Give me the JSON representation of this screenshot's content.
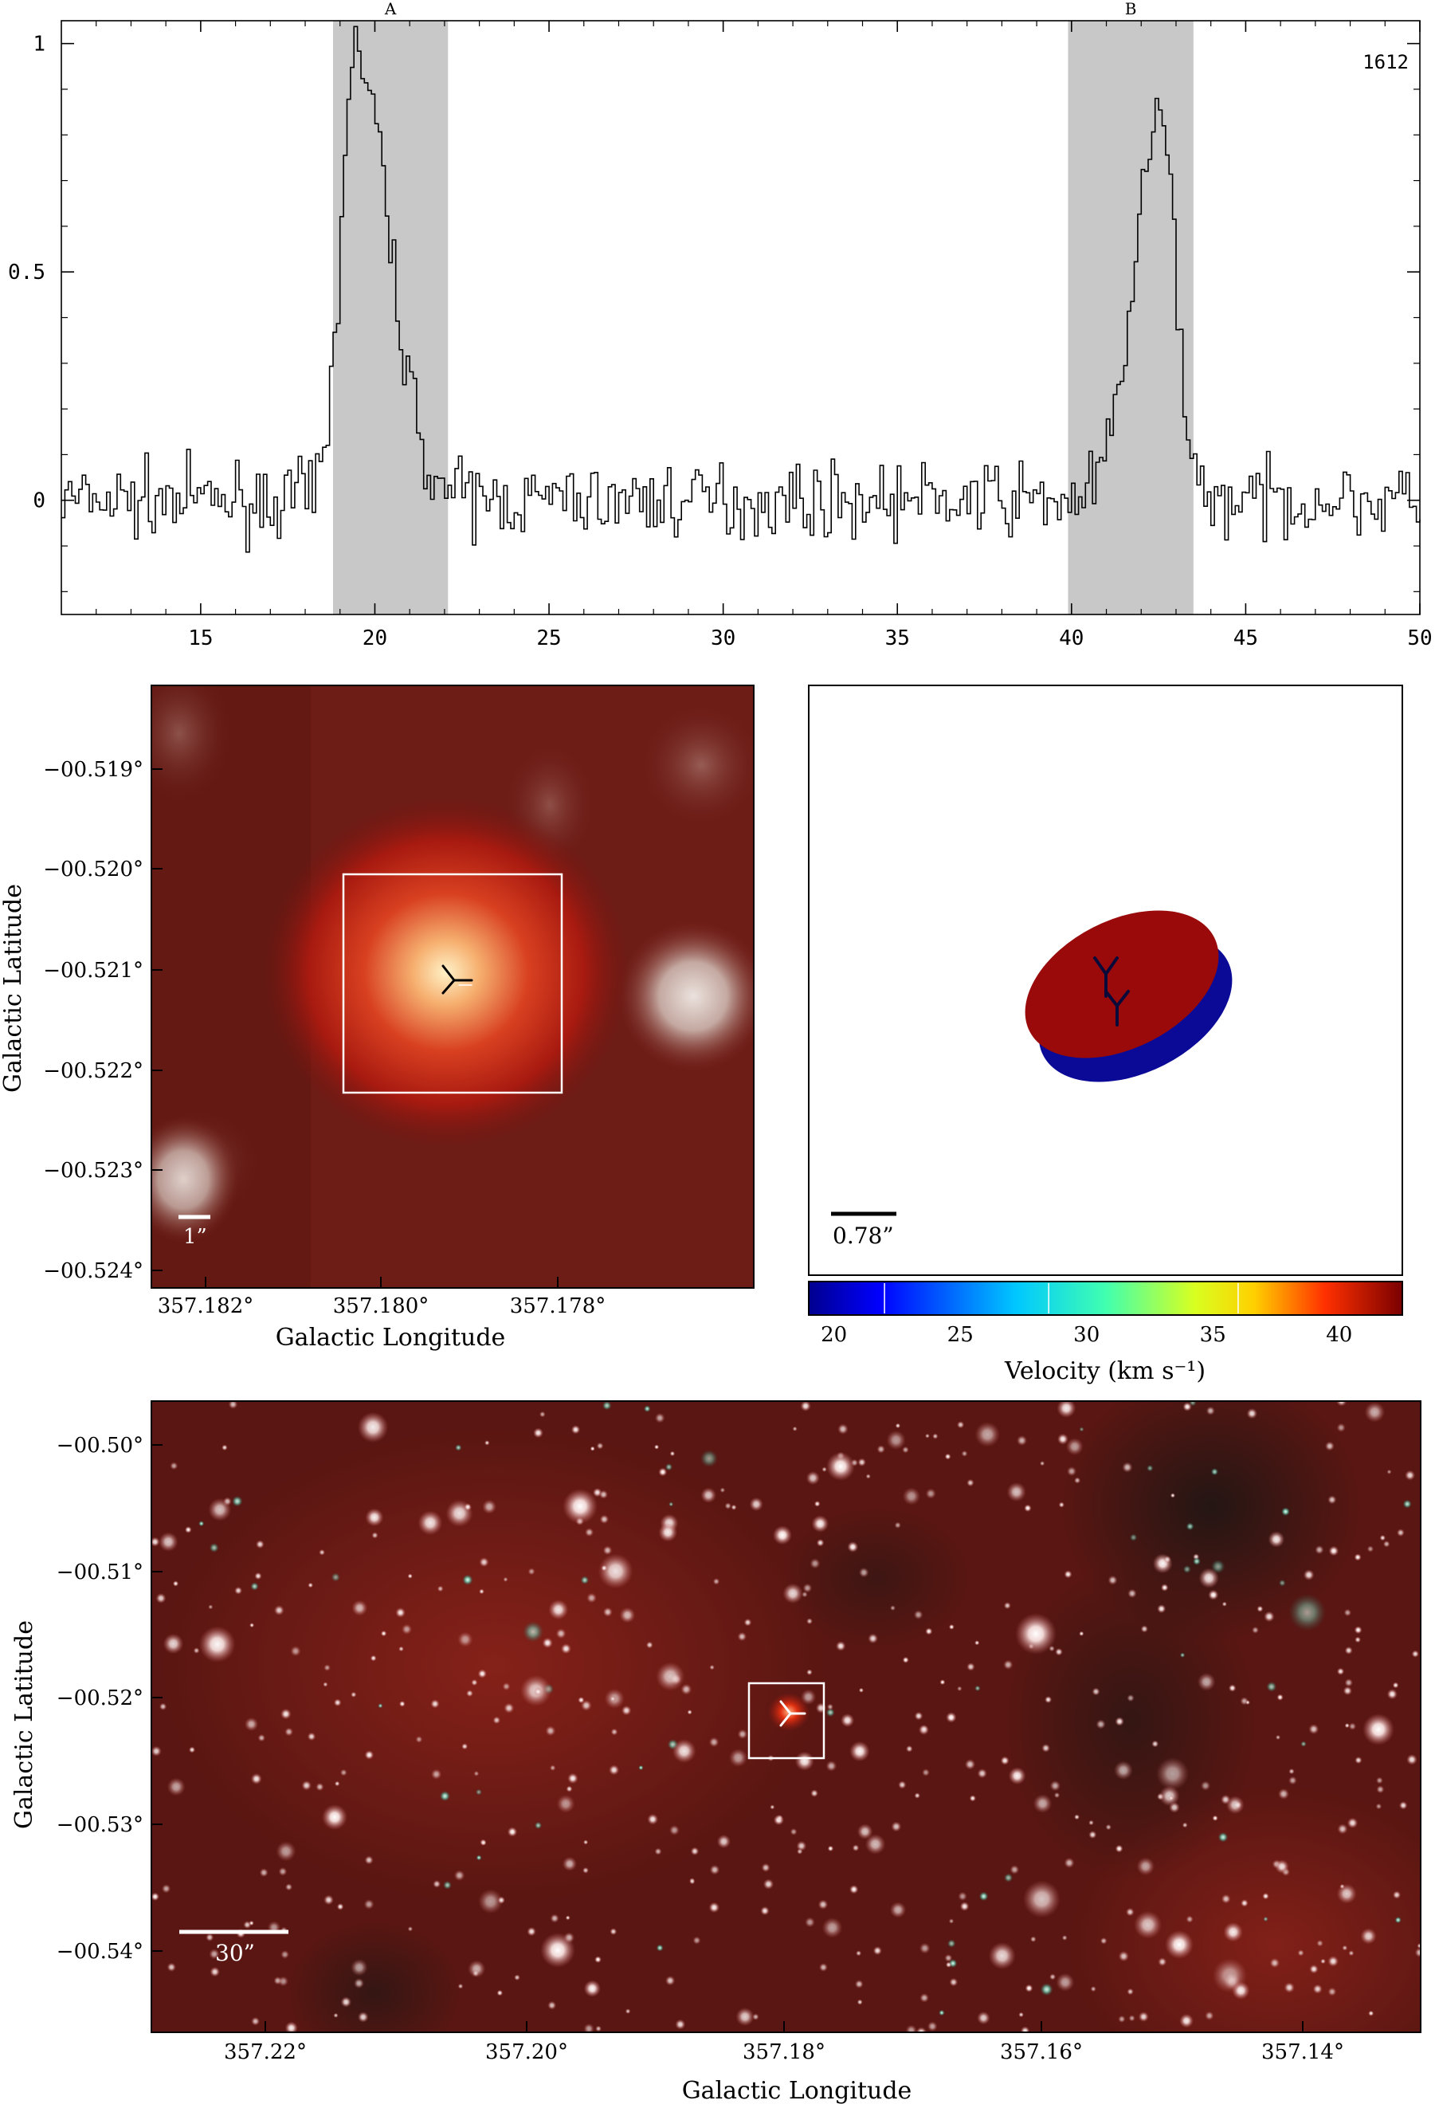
{
  "spectrum": {
    "label": "1612",
    "regions": [
      {
        "name": "A",
        "range": [
          18.8,
          22.1
        ]
      },
      {
        "name": "B",
        "range": [
          39.9,
          43.5
        ]
      }
    ],
    "x_ticks": [
      "15",
      "20",
      "25",
      "30",
      "35",
      "40",
      "45",
      "50"
    ],
    "y_ticks": [
      "0",
      "0.5",
      "1"
    ],
    "xlim": [
      11,
      50
    ],
    "ylim": [
      -0.25,
      1.05
    ],
    "peaks": [
      {
        "center": 19.4,
        "amp": 0.98,
        "rise": 0.42,
        "fall": 0.95
      },
      {
        "center": 42.5,
        "amp": 0.83,
        "rise": 0.75,
        "fall": 0.45
      }
    ],
    "channel_width": 0.1,
    "noise": 0.055
  },
  "zoom_map": {
    "y_ticks": [
      "−00.519°",
      "−00.520°",
      "−00.521°",
      "−00.522°",
      "−00.523°",
      "−00.524°"
    ],
    "x_ticks": [
      "357.182°",
      "357.180°",
      "357.178°"
    ],
    "xlabel": "Galactic Longitude",
    "ylabel": "Galactic Latitude",
    "scalebar": "1”"
  },
  "maser_map": {
    "scalebar": "0.78”",
    "colorbar_ticks": [
      "20",
      "25",
      "30",
      "35",
      "40"
    ],
    "colorbar_label": "Velocity (km s⁻¹)",
    "colorbar_range": [
      19,
      42.5
    ],
    "colors": {
      "red": "#9a0a0a",
      "blue": "#0a0a96"
    }
  },
  "wide_map": {
    "y_ticks": [
      "−00.50°",
      "−00.51°",
      "−00.52°",
      "−00.53°",
      "−00.54°"
    ],
    "x_ticks": [
      "357.22°",
      "357.20°",
      "357.18°",
      "357.16°",
      "357.14°"
    ],
    "xlabel": "Galactic Longitude",
    "ylabel": "Galactic Latitude",
    "scalebar": "30”"
  }
}
